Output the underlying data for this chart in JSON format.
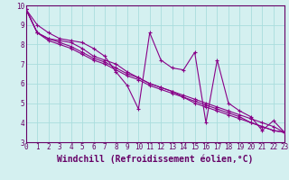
{
  "xlabel": "Windchill (Refroidissement éolien,°C)",
  "background_color": "#d4f0f0",
  "line_color": "#880088",
  "grid_color": "#aadddd",
  "x_data": [
    0,
    1,
    2,
    3,
    4,
    5,
    6,
    7,
    8,
    9,
    10,
    11,
    12,
    13,
    14,
    15,
    16,
    17,
    18,
    19,
    20,
    21,
    22,
    23
  ],
  "series": [
    [
      9.8,
      9.0,
      8.6,
      8.3,
      8.2,
      8.1,
      7.8,
      7.4,
      6.6,
      5.9,
      4.7,
      8.6,
      7.2,
      6.8,
      6.7,
      7.6,
      4.0,
      7.2,
      5.0,
      4.6,
      4.3,
      3.6,
      4.1,
      3.5
    ],
    [
      9.8,
      8.6,
      8.3,
      8.2,
      8.1,
      7.8,
      7.4,
      7.2,
      7.0,
      6.6,
      6.3,
      6.0,
      5.8,
      5.6,
      5.4,
      5.2,
      5.0,
      4.8,
      4.6,
      4.4,
      4.2,
      4.0,
      3.8,
      3.5
    ],
    [
      9.8,
      8.6,
      8.3,
      8.1,
      7.9,
      7.6,
      7.3,
      7.1,
      6.8,
      6.5,
      6.3,
      6.0,
      5.8,
      5.6,
      5.3,
      5.1,
      4.9,
      4.7,
      4.5,
      4.3,
      4.0,
      3.8,
      3.6,
      3.5
    ],
    [
      9.8,
      8.6,
      8.2,
      8.0,
      7.8,
      7.5,
      7.2,
      7.0,
      6.7,
      6.4,
      6.2,
      5.9,
      5.7,
      5.5,
      5.3,
      5.0,
      4.8,
      4.6,
      4.4,
      4.2,
      4.0,
      3.8,
      3.6,
      3.5
    ]
  ],
  "ylim": [
    3,
    10
  ],
  "xlim": [
    0,
    23
  ],
  "yticks": [
    3,
    4,
    5,
    6,
    7,
    8,
    9,
    10
  ],
  "xticks": [
    0,
    1,
    2,
    3,
    4,
    5,
    6,
    7,
    8,
    9,
    10,
    11,
    12,
    13,
    14,
    15,
    16,
    17,
    18,
    19,
    20,
    21,
    22,
    23
  ],
  "font_color": "#660066",
  "tick_label_fontsize": 5.5,
  "xlabel_fontsize": 7.0
}
